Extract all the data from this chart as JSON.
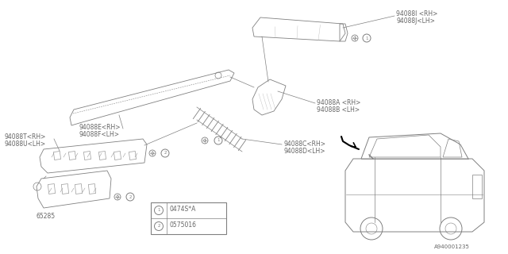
{
  "background_color": "#ffffff",
  "diagram_number": "A940001235",
  "fig_width": 6.4,
  "fig_height": 3.2,
  "dpi": 100,
  "label_IJ": [
    "94088I <RH>",
    "94088J<LH>"
  ],
  "label_AB": [
    "94088A <RH>",
    "94088B <LH>"
  ],
  "label_EF": [
    "94088E<RH>",
    "94088F<LH>"
  ],
  "label_CD": [
    "94088C<RH>",
    "94088D<LH>"
  ],
  "label_TU": [
    "94088T<RH>",
    "94088U<LH>"
  ],
  "label_65": "65285",
  "fastener1_num": "1",
  "fastener1_label": "0474S*A",
  "fastener2_num": "2",
  "fastener2_label": "0575016"
}
